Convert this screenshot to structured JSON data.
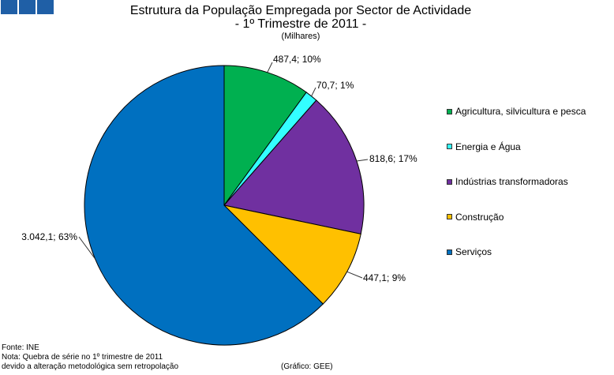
{
  "chart_data": {
    "type": "pie",
    "title": "Estrutura da População Empregada por Sector de Actividade",
    "subtitle": "- 1º Trimestre de 2011 -",
    "unit": "(Milhares)",
    "categories": [
      "Agricultura, silvicultura e pesca",
      "Energia e Água",
      "Indústrias transformadoras",
      "Construção",
      "Serviços"
    ],
    "values": [
      487.4,
      70.7,
      818.6,
      447.1,
      3042.1
    ],
    "data_labels": [
      "487,4; 10%",
      "70,7; 1%",
      "818,6; 17%",
      "447,1; 9%",
      "3.042,1; 63%"
    ],
    "colors": [
      "#00B050",
      "#33FFFF",
      "#7030A0",
      "#FFC000",
      "#0070C0"
    ],
    "legend_position": "right"
  },
  "footer": {
    "source": "Fonte: INE",
    "note_line1": "Nota: Quebra de série no 1º trimestre de 2011",
    "note_line2": "devido a alteração metodológica sem retropolação",
    "credit": "(Gráfico: GEE)"
  }
}
